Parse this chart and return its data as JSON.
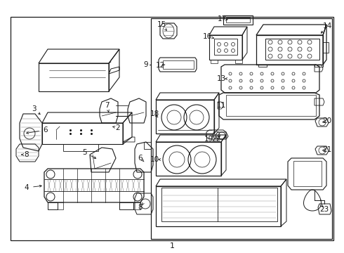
{
  "bg_color": "#ffffff",
  "fig_width": 4.9,
  "fig_height": 3.6,
  "dpi": 100,
  "line_color": "#1a1a1a",
  "font_size_labels": 7.5,
  "font_size_bottom": 8
}
